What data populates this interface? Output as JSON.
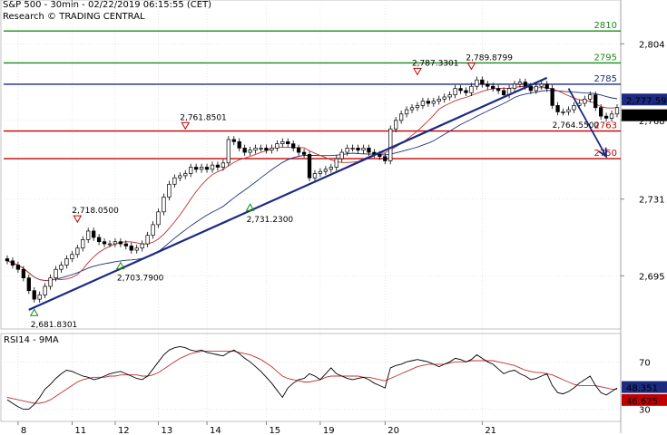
{
  "header": {
    "title": "S&P 500 - 30min - 02/22/2019 06:15:55 (CET)",
    "subtitle": "Research © TRADING CENTRAL"
  },
  "colors": {
    "green": "#1a8a1a",
    "red": "#c00000",
    "navy": "#1c2a80",
    "price": "#000000",
    "ma_red": "#c03030",
    "ma_blue": "#203080",
    "grid": "#cccccc",
    "last_badge": "#1c2a80",
    "rsi_badge": "#1c2a80",
    "rsi_ma_badge": "#c00000"
  },
  "chart_data": [
    {
      "type": "candlestick",
      "title": "S&P 500 - 30min",
      "ylim": [
        2670,
        2822
      ],
      "y_ticks": [
        "2,804",
        "2,768",
        "2,731",
        "2,695"
      ],
      "y_tick_values": [
        2804,
        2768,
        2731,
        2695
      ],
      "x_ticks": [
        "8",
        "11",
        "12",
        "13",
        "14",
        "15",
        "19",
        "20",
        "21"
      ],
      "last_price": {
        "value": 2774.88,
        "label": "2,774.88"
      },
      "last_ma": {
        "value": 2777.59,
        "label": "2,777.59"
      },
      "levels": [
        {
          "value": 2810,
          "label": "2810",
          "color": "green"
        },
        {
          "value": 2795,
          "label": "2795",
          "color": "green"
        },
        {
          "value": 2785,
          "label": "2785",
          "color": "navy"
        },
        {
          "value": 2763,
          "label": "2763",
          "color": "red"
        },
        {
          "value": 2750,
          "label": "2750",
          "color": "red"
        }
      ],
      "annotations": [
        {
          "label": "2,681.8301",
          "kind": "low",
          "value": 2681.83
        },
        {
          "label": "2,718.0500",
          "kind": "high",
          "value": 2718.05
        },
        {
          "label": "2,703.7900",
          "kind": "low",
          "value": 2703.79
        },
        {
          "label": "2,761.8501",
          "kind": "high",
          "value": 2761.85
        },
        {
          "label": "2,731.2300",
          "kind": "low",
          "value": 2731.23
        },
        {
          "label": "2,787.3301",
          "kind": "high",
          "value": 2787.33
        },
        {
          "label": "2,789.8799",
          "kind": "high",
          "value": 2789.88
        },
        {
          "label": "2,764.5500",
          "kind": "target",
          "value": 2764.55
        }
      ],
      "closes": [
        2702,
        2700,
        2698,
        2694,
        2688,
        2684,
        2686,
        2690,
        2694,
        2698,
        2700,
        2703,
        2705,
        2708,
        2712,
        2716,
        2713,
        2711,
        2710,
        2710,
        2711,
        2710,
        2709,
        2707,
        2708,
        2710,
        2714,
        2719,
        2725,
        2732,
        2738,
        2741,
        2742,
        2743,
        2746,
        2745,
        2746,
        2745,
        2747,
        2746,
        2748,
        2759,
        2758,
        2755,
        2753,
        2754,
        2755,
        2755,
        2754,
        2755,
        2757,
        2758,
        2757,
        2755,
        2753,
        2752,
        2741,
        2743,
        2744,
        2745,
        2746,
        2750,
        2753,
        2755,
        2755,
        2754,
        2755,
        2753,
        2752,
        2751,
        2749,
        2764,
        2768,
        2771,
        2773,
        2774,
        2775,
        2777,
        2776,
        2777,
        2778,
        2779,
        2780,
        2783,
        2782,
        2781,
        2784,
        2787,
        2785,
        2784,
        2783,
        2782,
        2780,
        2783,
        2785,
        2786,
        2784,
        2782,
        2784,
        2785,
        2783,
        2775,
        2772,
        2772,
        2773,
        2775,
        2776,
        2778,
        2780,
        2774,
        2770,
        2769,
        2771,
        2774
      ]
    },
    {
      "type": "line",
      "title": "RSI14 - 9MA",
      "ylim": [
        22,
        94
      ],
      "y_ticks": [
        "70",
        "30"
      ],
      "y_tick_values": [
        70,
        30
      ],
      "last_rsi": {
        "value": 48.351,
        "label": "48.351"
      },
      "last_ma": {
        "value": 46.625,
        "label": "46.625"
      },
      "rsi": [
        38,
        35,
        32,
        30,
        30,
        34,
        40,
        47,
        51,
        56,
        60,
        63,
        62,
        60,
        58,
        57,
        55,
        56,
        58,
        60,
        61,
        62,
        60,
        58,
        56,
        55,
        58,
        64,
        70,
        76,
        80,
        82,
        83,
        82,
        80,
        79,
        80,
        78,
        77,
        76,
        75,
        78,
        80,
        77,
        73,
        70,
        66,
        62,
        57,
        52,
        46,
        40,
        48,
        52,
        55,
        56,
        60,
        58,
        55,
        60,
        65,
        60,
        58,
        56,
        55,
        56,
        57,
        55,
        52,
        50,
        48,
        65,
        67,
        68,
        70,
        71,
        72,
        71,
        70,
        68,
        66,
        68,
        70,
        73,
        72,
        70,
        72,
        76,
        73,
        70,
        68,
        64,
        60,
        62,
        63,
        60,
        58,
        55,
        56,
        58,
        60,
        50,
        44,
        43,
        45,
        48,
        52,
        55,
        58,
        50,
        44,
        42,
        45,
        48
      ],
      "rsi_ma": [
        40,
        39,
        38,
        37,
        36,
        35,
        35,
        36,
        38,
        41,
        44,
        47,
        50,
        53,
        55,
        56,
        57,
        57,
        57,
        58,
        58,
        59,
        59,
        59,
        59,
        58,
        58,
        59,
        61,
        64,
        67,
        70,
        73,
        75,
        77,
        78,
        79,
        79,
        79,
        79,
        79,
        79,
        79,
        78,
        77,
        76,
        74,
        72,
        69,
        66,
        62,
        58,
        56,
        55,
        54,
        53,
        53,
        54,
        55,
        57,
        58,
        58,
        58,
        58,
        58,
        58,
        57,
        57,
        56,
        55,
        54,
        56,
        58,
        60,
        62,
        64,
        66,
        67,
        68,
        68,
        68,
        68,
        69,
        70,
        70,
        70,
        71,
        71,
        71,
        71,
        71,
        70,
        69,
        68,
        67,
        65,
        63,
        62,
        61,
        61,
        60,
        59,
        57,
        55,
        53,
        51,
        50,
        50,
        50,
        50,
        49,
        48,
        47,
        47
      ]
    }
  ]
}
